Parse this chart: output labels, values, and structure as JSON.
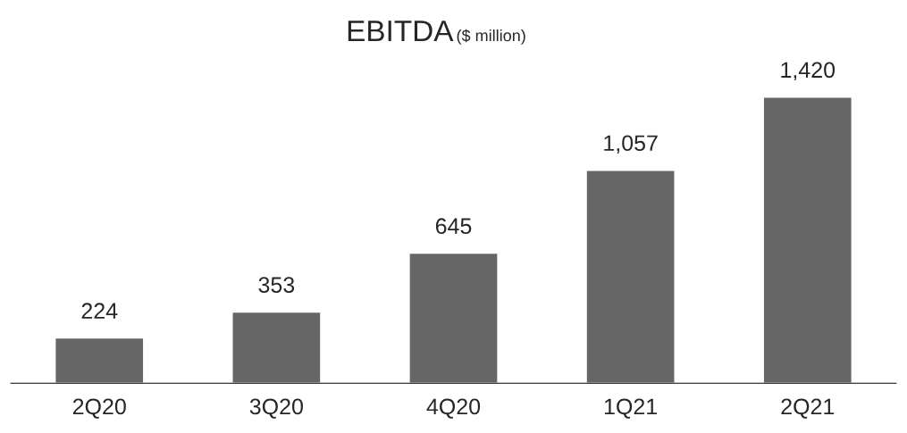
{
  "chart_data": {
    "type": "bar",
    "title": "EBITDA",
    "subtitle": "($ million)",
    "categories": [
      "2Q20",
      "3Q20",
      "4Q20",
      "1Q21",
      "2Q21"
    ],
    "values": [
      224,
      353,
      645,
      1057,
      1420
    ],
    "value_labels": [
      "224",
      "353",
      "645",
      "1,057",
      "1,420"
    ],
    "color": "#666666",
    "grid": false,
    "legend": false
  }
}
